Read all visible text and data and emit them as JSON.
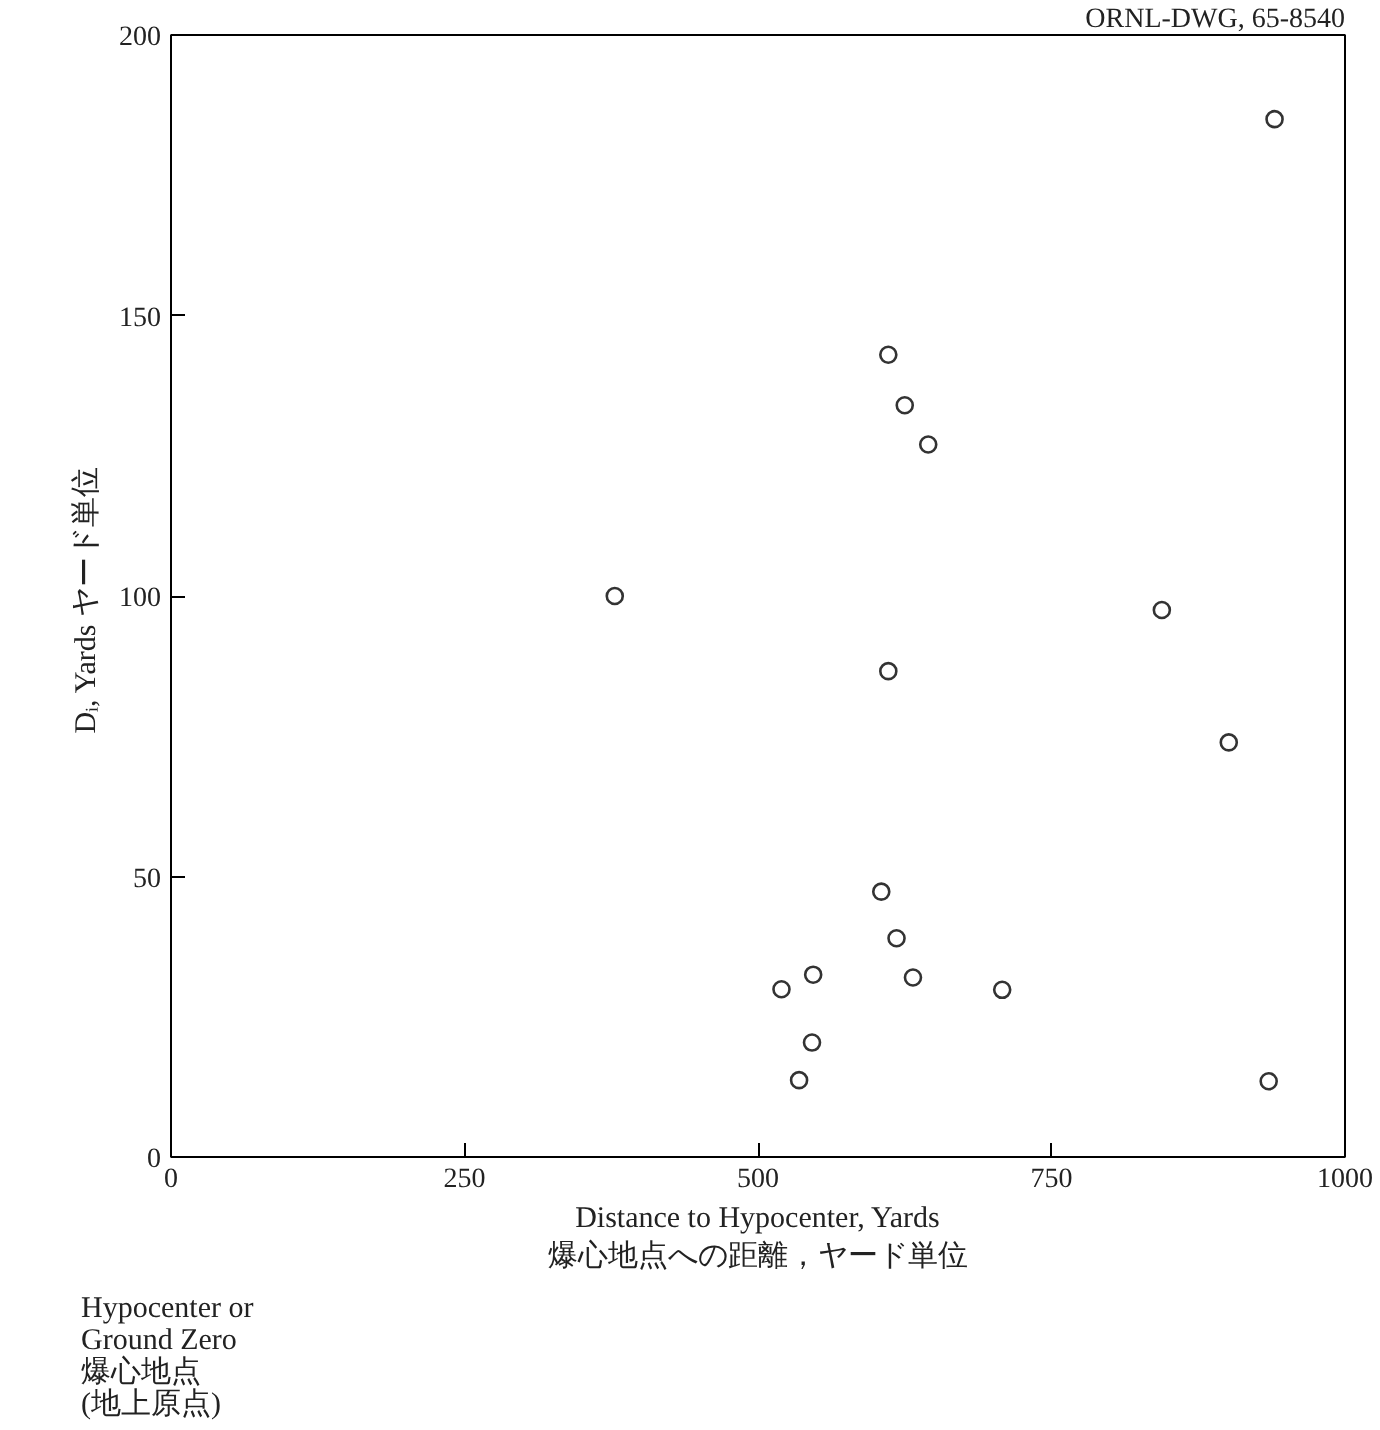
{
  "chart_data": {
    "type": "scatter",
    "xlabel": "Distance to Hypocenter, Yards\n爆心地点への距離，ヤード単位",
    "ylabel": "Dᵢ, Yards  ヤード単位",
    "x": [
      378,
      611,
      625,
      645,
      844,
      611,
      901,
      940,
      605,
      618,
      547,
      520,
      632,
      708,
      546,
      535,
      935
    ],
    "values": [
      100,
      143,
      134,
      127,
      97.5,
      86.6,
      73.9,
      185,
      47.3,
      39,
      32.5,
      29.9,
      32,
      29.8,
      20.4,
      13.7,
      13.5
    ],
    "color": "#333333",
    "marker": "circle",
    "grid": false,
    "xlim": [
      0,
      1000
    ],
    "ylim": [
      0,
      200
    ],
    "xticks": [
      0,
      250,
      500,
      750,
      1000
    ],
    "yticks": [
      0,
      50,
      100,
      150,
      200
    ],
    "annotations": [
      "ORNL-DWG, 65-8540",
      "Hypocenter or\nGround Zero\n爆心地点\n(地上原点)"
    ]
  }
}
